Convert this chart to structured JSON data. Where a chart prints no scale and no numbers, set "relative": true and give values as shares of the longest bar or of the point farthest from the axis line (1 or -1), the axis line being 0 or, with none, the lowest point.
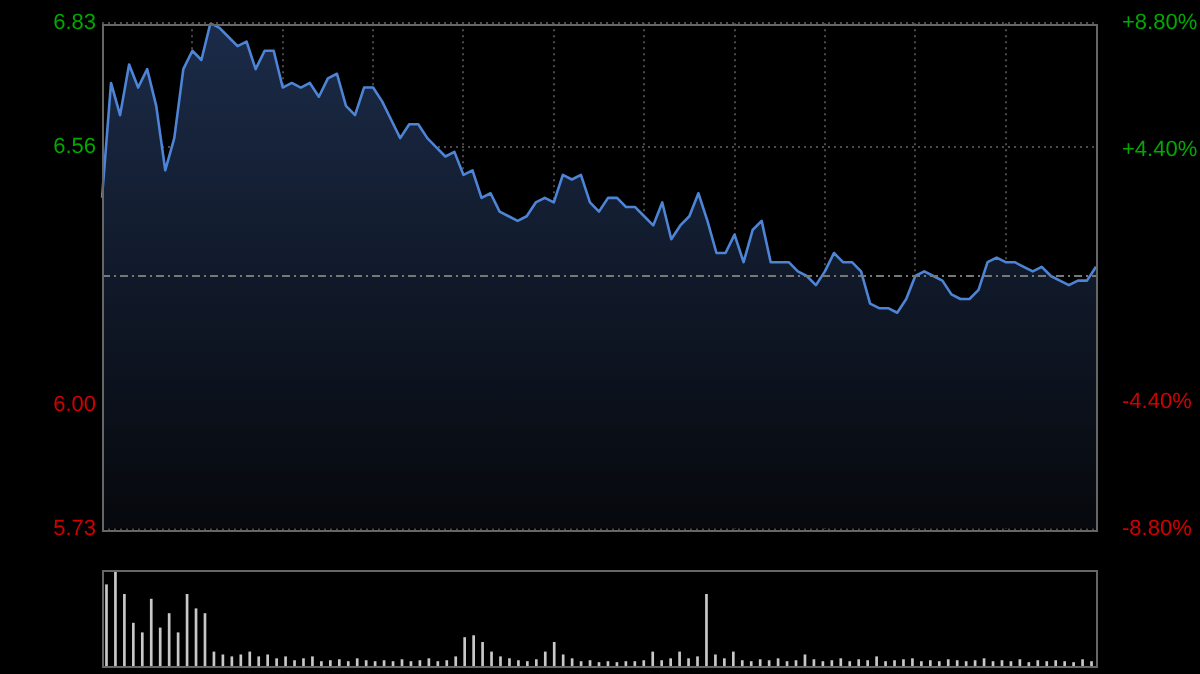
{
  "chart_data": [
    {
      "type": "area",
      "color": "#4d84d6",
      "categories": [
        null,
        null,
        null,
        null,
        null,
        null,
        null,
        null,
        null,
        null,
        null,
        null,
        null,
        null,
        null,
        null,
        null,
        null,
        null,
        null,
        null,
        null,
        null,
        null,
        null,
        null,
        null,
        null,
        null,
        null,
        null,
        null,
        null,
        null,
        null,
        null,
        null,
        null,
        null,
        null,
        null,
        null,
        null,
        null,
        null,
        null,
        null,
        null,
        null,
        null,
        null,
        null,
        null,
        null,
        null,
        null,
        null,
        null,
        null,
        null,
        null,
        null,
        null,
        null,
        null,
        null,
        null,
        null,
        null,
        null,
        null,
        null,
        null,
        null,
        null,
        null,
        null,
        null,
        null,
        null,
        null,
        null,
        null,
        null,
        null,
        null,
        null,
        null,
        null,
        null,
        null,
        null,
        null,
        null,
        null,
        null,
        null,
        null,
        null,
        null,
        null,
        null,
        null,
        null,
        null,
        null,
        null,
        null,
        null,
        null,
        null
      ],
      "values": [
        6.45,
        6.7,
        6.63,
        6.74,
        6.69,
        6.73,
        6.65,
        6.51,
        6.58,
        6.73,
        6.77,
        6.75,
        6.83,
        6.82,
        6.8,
        6.78,
        6.79,
        6.73,
        6.77,
        6.77,
        6.69,
        6.7,
        6.69,
        6.7,
        6.67,
        6.71,
        6.72,
        6.65,
        6.63,
        6.69,
        6.69,
        6.66,
        6.62,
        6.58,
        6.61,
        6.61,
        6.58,
        6.56,
        6.54,
        6.55,
        6.5,
        6.51,
        6.45,
        6.46,
        6.42,
        6.41,
        6.4,
        6.41,
        6.44,
        6.45,
        6.44,
        6.5,
        6.49,
        6.5,
        6.44,
        6.42,
        6.45,
        6.45,
        6.43,
        6.43,
        6.41,
        6.39,
        6.44,
        6.36,
        6.39,
        6.41,
        6.46,
        6.4,
        6.33,
        6.33,
        6.37,
        6.31,
        6.38,
        6.4,
        6.31,
        6.31,
        6.31,
        6.29,
        6.28,
        6.26,
        6.29,
        6.33,
        6.31,
        6.31,
        6.29,
        6.22,
        6.21,
        6.21,
        6.2,
        6.23,
        6.28,
        6.29,
        6.28,
        6.27,
        6.24,
        6.23,
        6.23,
        6.25,
        6.31,
        6.32,
        6.31,
        6.31,
        6.3,
        6.29,
        6.3,
        6.28,
        6.27,
        6.26,
        6.27,
        6.27,
        6.3
      ],
      "ylim": [
        5.73,
        6.83
      ],
      "yticks": [
        6.83,
        6.56,
        {
          "value": 6.0,
          "label": "6.00"
        },
        5.73
      ],
      "y2lim": [
        -8.8,
        8.8
      ],
      "y2ticks": [
        {
          "value": 8.8,
          "label": "+8.80%"
        },
        {
          "value": 4.4,
          "label": "+4.40%"
        },
        {
          "value": -4.4,
          "label": "-4.40%"
        },
        {
          "value": -8.8,
          "label": "-8.80%"
        }
      ],
      "ref_lines": [
        {
          "axis": "y",
          "value": 6.28
        }
      ],
      "grid": true,
      "tick_labels": "y"
    },
    {
      "type": "bar",
      "relative": true,
      "color": "#c8c8c8",
      "categories": [
        null,
        null,
        null,
        null,
        null,
        null,
        null,
        null,
        null,
        null,
        null,
        null,
        null,
        null,
        null,
        null,
        null,
        null,
        null,
        null,
        null,
        null,
        null,
        null,
        null,
        null,
        null,
        null,
        null,
        null,
        null,
        null,
        null,
        null,
        null,
        null,
        null,
        null,
        null,
        null,
        null,
        null,
        null,
        null,
        null,
        null,
        null,
        null,
        null,
        null,
        null,
        null,
        null,
        null,
        null,
        null,
        null,
        null,
        null,
        null,
        null,
        null,
        null,
        null,
        null,
        null,
        null,
        null,
        null,
        null,
        null,
        null,
        null,
        null,
        null,
        null,
        null,
        null,
        null,
        null,
        null,
        null,
        null,
        null,
        null,
        null,
        null,
        null,
        null,
        null,
        null,
        null,
        null,
        null,
        null,
        null,
        null,
        null,
        null,
        null,
        null,
        null,
        null,
        null,
        null,
        null,
        null,
        null,
        null,
        null,
        null
      ],
      "values": [
        0.85,
        1.0,
        0.75,
        0.45,
        0.35,
        0.7,
        0.4,
        0.55,
        0.35,
        0.75,
        0.6,
        0.55,
        0.15,
        0.12,
        0.1,
        0.12,
        0.15,
        0.1,
        0.12,
        0.08,
        0.1,
        0.06,
        0.08,
        0.1,
        0.05,
        0.06,
        0.07,
        0.05,
        0.08,
        0.06,
        0.05,
        0.06,
        0.05,
        0.07,
        0.05,
        0.06,
        0.08,
        0.05,
        0.06,
        0.1,
        0.3,
        0.32,
        0.25,
        0.15,
        0.1,
        0.08,
        0.06,
        0.05,
        0.07,
        0.15,
        0.25,
        0.12,
        0.08,
        0.05,
        0.06,
        0.04,
        0.05,
        0.04,
        0.05,
        0.05,
        0.06,
        0.15,
        0.06,
        0.08,
        0.15,
        0.08,
        0.1,
        0.75,
        0.12,
        0.08,
        0.15,
        0.06,
        0.05,
        0.07,
        0.06,
        0.08,
        0.05,
        0.06,
        0.12,
        0.07,
        0.05,
        0.06,
        0.08,
        0.05,
        0.07,
        0.06,
        0.1,
        0.05,
        0.06,
        0.07,
        0.08,
        0.05,
        0.06,
        0.05,
        0.07,
        0.06,
        0.05,
        0.06,
        0.08,
        0.05,
        0.06,
        0.05,
        0.07,
        0.04,
        0.06,
        0.05,
        0.06,
        0.05,
        0.04,
        0.07,
        0.05
      ]
    }
  ]
}
